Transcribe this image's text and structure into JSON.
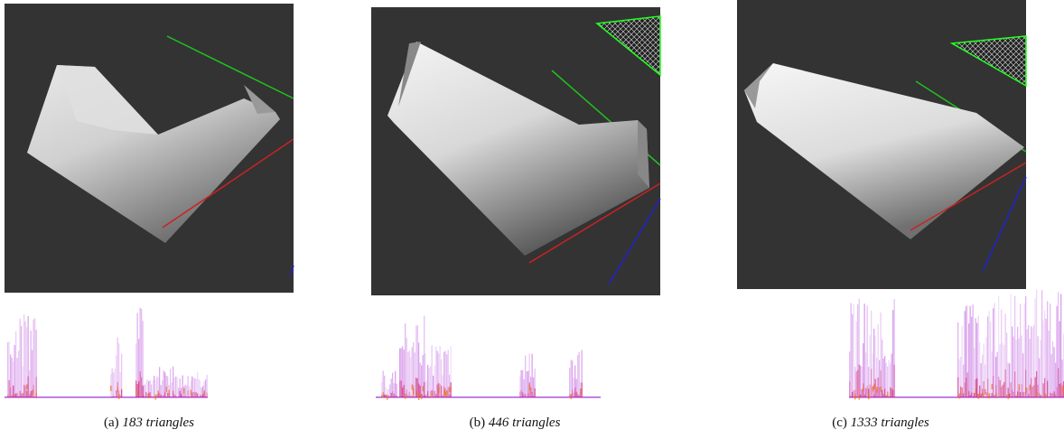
{
  "figures": [
    {
      "label": "(a)",
      "caption": "183 triangles"
    },
    {
      "label": "(b)",
      "caption": "446 triangles"
    },
    {
      "label": "(c)",
      "caption": "1333 triangles"
    }
  ]
}
